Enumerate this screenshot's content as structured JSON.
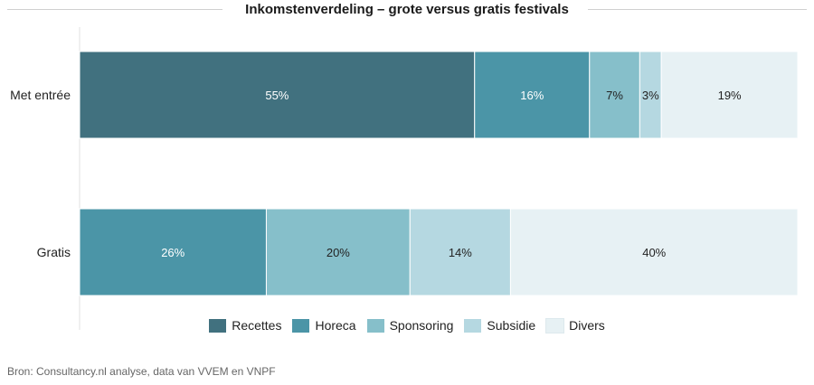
{
  "chart_data": {
    "type": "bar",
    "orientation": "horizontal",
    "stacked": true,
    "title": "Inkomstenverdeling – grote versus gratis festivals",
    "categories": [
      "Met entrée",
      "Gratis"
    ],
    "series": [
      {
        "name": "Recettes",
        "color": "#41717f",
        "label_color": "#ffffff",
        "values": [
          55,
          0
        ]
      },
      {
        "name": "Horeca",
        "color": "#4b95a7",
        "label_color": "#ffffff",
        "values": [
          16,
          26
        ]
      },
      {
        "name": "Sponsoring",
        "color": "#86bfca",
        "label_color": "#222222",
        "values": [
          7,
          20
        ]
      },
      {
        "name": "Subsidie",
        "color": "#b5d8e1",
        "label_color": "#222222",
        "values": [
          3,
          14
        ]
      },
      {
        "name": "Divers",
        "color": "#e7f1f4",
        "label_color": "#222222",
        "values": [
          19,
          40
        ]
      }
    ],
    "value_suffix": "%",
    "xlim": [
      0,
      101
    ],
    "legend_position": "bottom"
  },
  "source": "Bron: Consultancy.nl analyse, data van VVEM en VNPF"
}
